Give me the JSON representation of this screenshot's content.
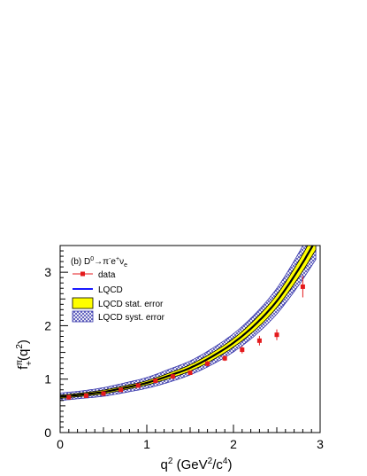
{
  "chart_data": {
    "type": "scatter",
    "panel_label": "(b)",
    "process": {
      "base": "D",
      "base_sup": "0",
      "arrow": "→",
      "pion": "π",
      "pion_sup": "-",
      "lepton": "e",
      "lepton_sup": "+",
      "neutrino": "ν",
      "neutrino_sub": "e"
    },
    "xlabel": {
      "main": "q",
      "sup": "2",
      "unit_open": " (GeV",
      "unit_sup1": "2",
      "unit_mid": "/c",
      "unit_sup2": "4",
      "unit_close": ")"
    },
    "ylabel": {
      "main": "f",
      "sup": "π",
      "sub": "+",
      "arg_open": "(q",
      "arg_sup": "2",
      "arg_close": ")"
    },
    "xlim": [
      0,
      3
    ],
    "ylim": [
      0,
      3.5
    ],
    "xticks": [
      0,
      1,
      2,
      3
    ],
    "yticks": [
      0,
      1,
      2,
      3
    ],
    "xtick_labels": [
      "0",
      "1",
      "2",
      "3"
    ],
    "ytick_labels": [
      "0",
      "1",
      "2",
      "3"
    ],
    "grid": false,
    "legend_position": "top-left",
    "legend": [
      {
        "key": "data",
        "label": "data"
      },
      {
        "key": "lqcd",
        "label": "LQCD"
      },
      {
        "key": "stat",
        "label": "LQCD stat. error"
      },
      {
        "key": "syst",
        "label": "LQCD syst. error"
      }
    ],
    "data": {
      "x": [
        0.1,
        0.3,
        0.5,
        0.7,
        0.9,
        1.1,
        1.3,
        1.5,
        1.7,
        1.9,
        2.1,
        2.3,
        2.5,
        2.8
      ],
      "y": [
        0.66,
        0.69,
        0.73,
        0.8,
        0.88,
        0.97,
        1.05,
        1.12,
        1.29,
        1.39,
        1.55,
        1.72,
        1.83,
        2.73
      ],
      "yerr": [
        0.03,
        0.03,
        0.03,
        0.03,
        0.03,
        0.04,
        0.04,
        0.04,
        0.05,
        0.05,
        0.07,
        0.09,
        0.1,
        0.2
      ]
    },
    "lqcd": {
      "x": [
        0,
        0.25,
        0.5,
        0.75,
        1.0,
        1.25,
        1.5,
        1.75,
        2.0,
        2.25,
        2.5,
        2.75,
        2.95
      ],
      "y": [
        0.67,
        0.71,
        0.76,
        0.84,
        0.93,
        1.06,
        1.21,
        1.42,
        1.68,
        2.02,
        2.46,
        3.05,
        3.6
      ],
      "stat_err": [
        0.03,
        0.03,
        0.035,
        0.035,
        0.04,
        0.05,
        0.06,
        0.07,
        0.08,
        0.1,
        0.12,
        0.15,
        0.18
      ],
      "syst_err": [
        0.07,
        0.07,
        0.08,
        0.09,
        0.1,
        0.12,
        0.13,
        0.15,
        0.17,
        0.2,
        0.24,
        0.3,
        0.36
      ]
    },
    "colors": {
      "data": "#e41a1c",
      "lqcd_line": "#1a1aff",
      "stat_band": "#ffff00",
      "syst_hatch": "#3333aa",
      "axes": "#000000"
    }
  }
}
